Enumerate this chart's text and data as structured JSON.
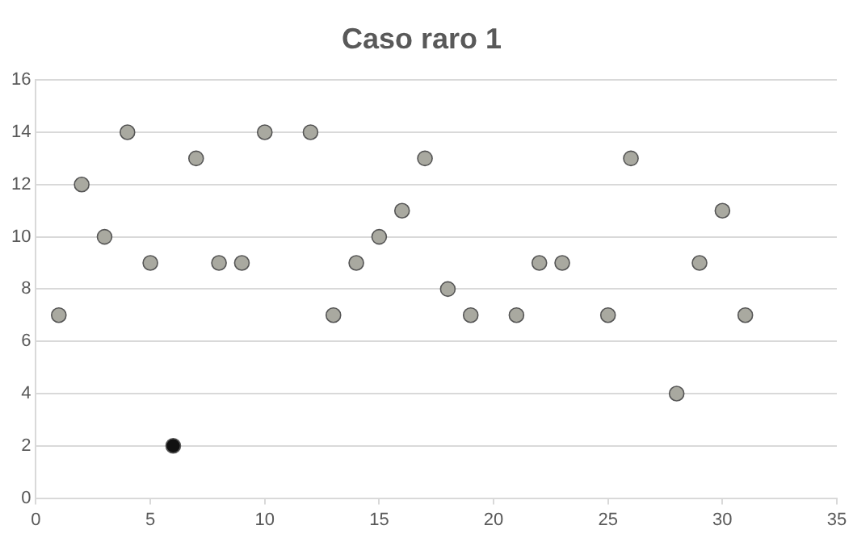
{
  "chart_data": {
    "type": "scatter",
    "title": "Caso raro 1",
    "x": [
      1,
      2,
      3,
      4,
      5,
      6,
      7,
      8,
      9,
      10,
      12,
      13,
      14,
      15,
      16,
      17,
      18,
      19,
      21,
      22,
      23,
      25,
      26,
      28,
      29,
      30,
      31
    ],
    "series": [
      {
        "values": [
          7,
          12,
          10,
          14,
          9,
          2,
          13,
          9,
          9,
          14,
          14,
          7,
          9,
          10,
          11,
          13,
          8,
          7,
          7,
          9,
          9,
          7,
          13,
          4,
          9,
          11,
          7
        ],
        "colors": [
          "#a9a9a0",
          "#a9a9a0",
          "#a9a9a0",
          "#a9a9a0",
          "#a9a9a0",
          "#111111",
          "#a9a9a0",
          "#a9a9a0",
          "#a9a9a0",
          "#a9a9a0",
          "#a9a9a0",
          "#a9a9a0",
          "#a9a9a0",
          "#a9a9a0",
          "#a9a9a0",
          "#a9a9a0",
          "#a9a9a0",
          "#a9a9a0",
          "#a9a9a0",
          "#a9a9a0",
          "#a9a9a0",
          "#a9a9a0",
          "#a9a9a0",
          "#a9a9a0",
          "#a9a9a0",
          "#a9a9a0",
          "#a9a9a0"
        ]
      }
    ],
    "xlim": [
      0,
      35
    ],
    "xticks": [
      0,
      5,
      10,
      15,
      20,
      25,
      30,
      35
    ],
    "ylim": [
      0,
      16
    ],
    "yticks": [
      0,
      2,
      4,
      6,
      8,
      10,
      12,
      14,
      16
    ],
    "grid": "y",
    "legend": false,
    "marker": "circle"
  }
}
